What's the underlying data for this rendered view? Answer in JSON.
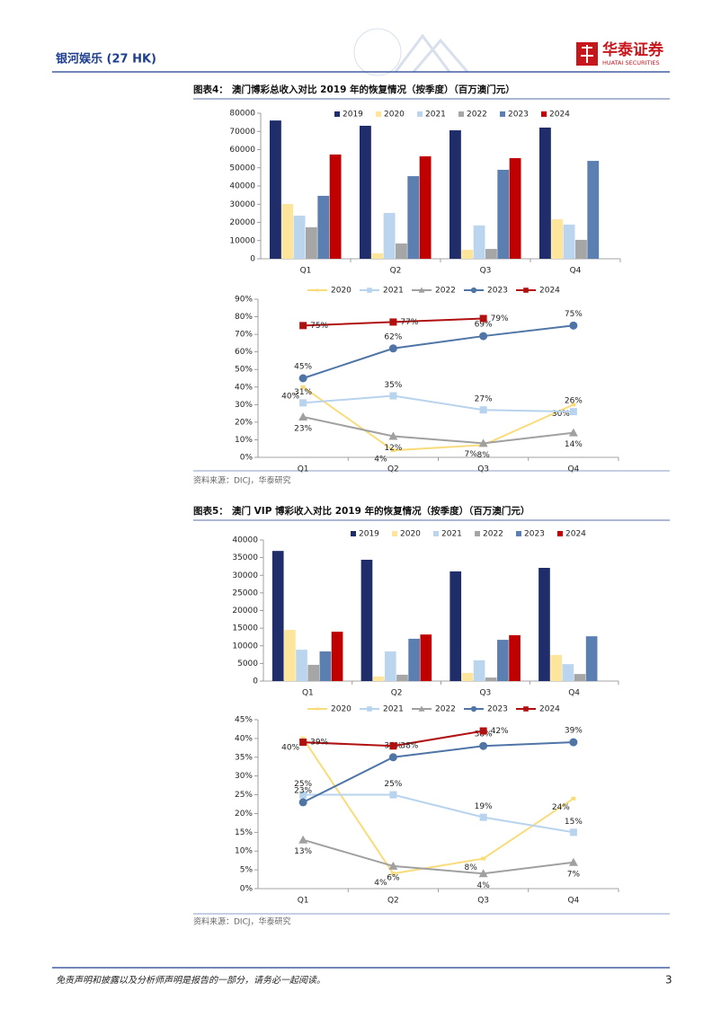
{
  "header": {
    "title": "银河娱乐 (27 HK)",
    "logo_cn": "华泰证券",
    "logo_en": "HUATAI SECURITIES"
  },
  "figures": [
    {
      "label": "图表4：",
      "title": "澳门博彩总收入对比 2019 年的恢复情况（按季度）（百万澳门元）",
      "source": "资料来源：DICJ，华泰研究"
    },
    {
      "label": "图表5：",
      "title": "澳门 VIP 博彩收入对比 2019 年的恢复情况（按季度）（百万澳门元）",
      "source": "资料来源：DICJ，华泰研究"
    }
  ],
  "chart_data": [
    {
      "type": "bar",
      "categories": [
        "Q1",
        "Q2",
        "Q3",
        "Q4"
      ],
      "ylim": [
        0,
        80000
      ],
      "yticks": [
        0,
        10000,
        20000,
        30000,
        40000,
        50000,
        60000,
        70000,
        80000
      ],
      "legend": "top",
      "series": [
        {
          "name": "2019",
          "color": "#1f2d6b",
          "values": [
            76000,
            73100,
            70600,
            72100
          ]
        },
        {
          "name": "2020",
          "color": "#fde59c",
          "values": [
            30100,
            3000,
            4900,
            21700
          ]
        },
        {
          "name": "2021",
          "color": "#bcd5ef",
          "values": [
            23700,
            25200,
            18300,
            18800
          ]
        },
        {
          "name": "2022",
          "color": "#a6a6a6",
          "values": [
            17300,
            8400,
            5400,
            10400
          ]
        },
        {
          "name": "2023",
          "color": "#5b7fb0",
          "values": [
            34600,
            45400,
            48900,
            53800
          ]
        },
        {
          "name": "2024",
          "color": "#c00000",
          "values": [
            57300,
            56300,
            55300,
            null
          ]
        }
      ]
    },
    {
      "type": "line",
      "categories": [
        "Q1",
        "Q2",
        "Q3",
        "Q4"
      ],
      "ylim": [
        0,
        90
      ],
      "yticks": [
        {
          "value": 0,
          "label": "0%"
        },
        {
          "value": 10,
          "label": "10%"
        },
        {
          "value": 20,
          "label": "20%"
        },
        {
          "value": 30,
          "label": "30%"
        },
        {
          "value": 40,
          "label": "40%"
        },
        {
          "value": 50,
          "label": "50%"
        },
        {
          "value": 60,
          "label": "60%"
        },
        {
          "value": 70,
          "label": "70%"
        },
        {
          "value": 80,
          "label": "80%"
        },
        {
          "value": 90,
          "label": "90%"
        }
      ],
      "legend": "top",
      "series": [
        {
          "name": "2020",
          "color": "#f9dc7a",
          "marker": "dot",
          "values": [
            40,
            4,
            7,
            30
          ],
          "value_labels": [
            "40%",
            "4%",
            "7%",
            "30%"
          ]
        },
        {
          "name": "2021",
          "color": "#b7d3ee",
          "marker": "square",
          "values": [
            31,
            35,
            27,
            26
          ],
          "value_labels": [
            "31%",
            "35%",
            "27%",
            "26%"
          ]
        },
        {
          "name": "2022",
          "color": "#a0a0a0",
          "marker": "triangle",
          "values": [
            23,
            12,
            8,
            14
          ],
          "value_labels": [
            "23%",
            "12%",
            "8%",
            "14%"
          ]
        },
        {
          "name": "2023",
          "color": "#4f75a6",
          "marker": "circle",
          "values": [
            45,
            62,
            69,
            75
          ],
          "value_labels": [
            "45%",
            "62%",
            "69%",
            "75%"
          ]
        },
        {
          "name": "2024",
          "color": "#b01010",
          "marker": "square",
          "values": [
            75,
            77,
            79,
            null
          ],
          "value_labels": [
            "75%",
            "77%",
            "79%",
            null
          ]
        }
      ]
    },
    {
      "type": "bar",
      "categories": [
        "Q1",
        "Q2",
        "Q3",
        "Q4"
      ],
      "ylim": [
        0,
        40000
      ],
      "yticks": [
        0,
        5000,
        10000,
        15000,
        20000,
        25000,
        30000,
        35000,
        40000
      ],
      "legend": "top",
      "series": [
        {
          "name": "2019",
          "color": "#1f2d6b",
          "values": [
            36900,
            34400,
            31100,
            32100
          ]
        },
        {
          "name": "2020",
          "color": "#fde59c",
          "values": [
            14500,
            1300,
            2300,
            7400
          ]
        },
        {
          "name": "2021",
          "color": "#bcd5ef",
          "values": [
            8900,
            8400,
            5900,
            4800
          ]
        },
        {
          "name": "2022",
          "color": "#a6a6a6",
          "values": [
            4600,
            1800,
            1000,
            2000
          ]
        },
        {
          "name": "2023",
          "color": "#5b7fb0",
          "values": [
            8400,
            12000,
            11700,
            12700
          ]
        },
        {
          "name": "2024",
          "color": "#c00000",
          "values": [
            14000,
            13200,
            13000,
            null
          ]
        }
      ]
    },
    {
      "type": "line",
      "categories": [
        "Q1",
        "Q2",
        "Q3",
        "Q4"
      ],
      "ylim": [
        0,
        45
      ],
      "yticks": [
        {
          "value": 0,
          "label": "0%"
        },
        {
          "value": 5,
          "label": "5%"
        },
        {
          "value": 10,
          "label": "10%"
        },
        {
          "value": 15,
          "label": "15%"
        },
        {
          "value": 20,
          "label": "20%"
        },
        {
          "value": 25,
          "label": "25%"
        },
        {
          "value": 30,
          "label": "30%"
        },
        {
          "value": 35,
          "label": "35%"
        },
        {
          "value": 40,
          "label": "40%"
        },
        {
          "value": 45,
          "label": "45%"
        }
      ],
      "legend": "top",
      "series": [
        {
          "name": "2020",
          "color": "#f9dc7a",
          "marker": "dot",
          "values": [
            40,
            4,
            8,
            24
          ],
          "value_labels": [
            "40%",
            "4%",
            "8%",
            "24%"
          ]
        },
        {
          "name": "2021",
          "color": "#b7d3ee",
          "marker": "square",
          "values": [
            25,
            25,
            19,
            15
          ],
          "value_labels": [
            "25%",
            "25%",
            "19%",
            "15%"
          ]
        },
        {
          "name": "2022",
          "color": "#a0a0a0",
          "marker": "triangle",
          "values": [
            13,
            6,
            4,
            7
          ],
          "value_labels": [
            "13%",
            "6%",
            "4%",
            "7%"
          ]
        },
        {
          "name": "2023",
          "color": "#4f75a6",
          "marker": "circle",
          "values": [
            23,
            35,
            38,
            39
          ],
          "value_labels": [
            "23%",
            "35%",
            "38%",
            "39%"
          ]
        },
        {
          "name": "2024",
          "color": "#b01010",
          "marker": "square",
          "values": [
            39,
            38,
            42,
            null
          ],
          "value_labels": [
            "39%",
            "38%",
            "42%",
            null
          ]
        }
      ]
    }
  ],
  "footer": {
    "disclaimer": "免责声明和披露以及分析师声明是报告的一部分，请务必一起阅读。",
    "page": "3"
  }
}
